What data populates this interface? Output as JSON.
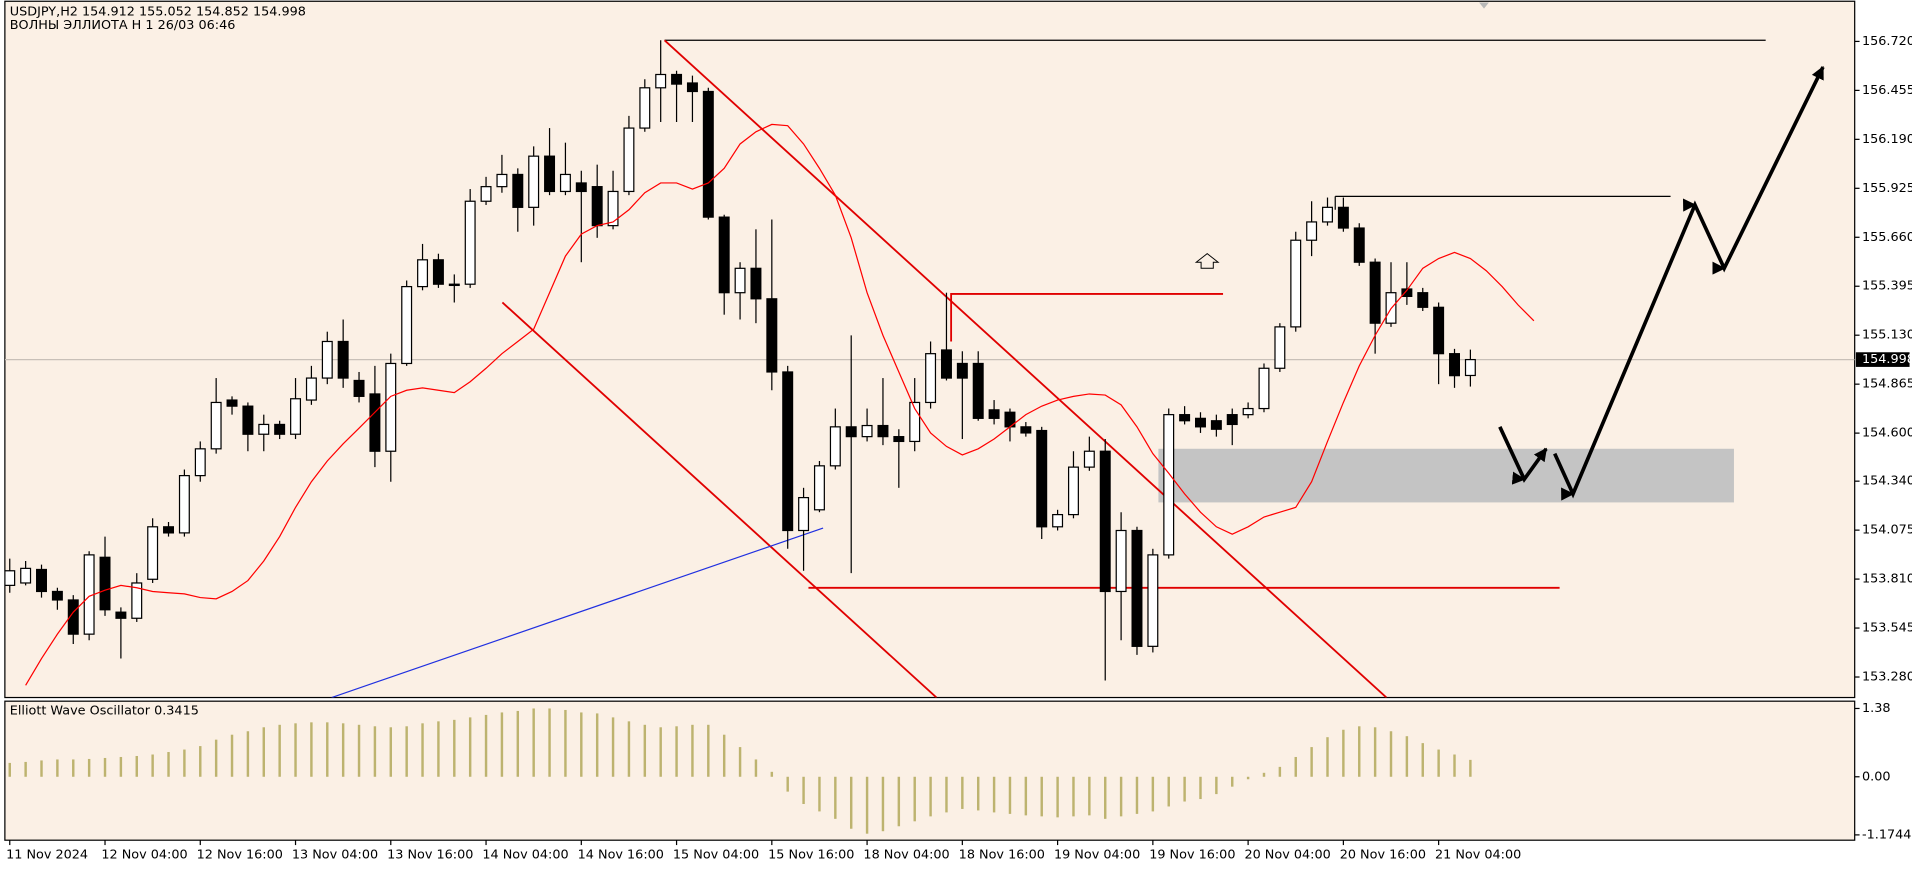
{
  "chart_data": [
    {
      "type": "candlestick",
      "title": "USDJPY,H2  154.912 155.052 154.852 154.998",
      "subtitle": "ВОЛНЫ ЭЛЛИОТА H 1 26/03 06:46",
      "categories": [
        "11 Nov 2024",
        null,
        null,
        null,
        null,
        null,
        "12 Nov 04:00",
        null,
        null,
        null,
        null,
        null,
        "12 Nov 16:00",
        null,
        null,
        null,
        null,
        null,
        "13 Nov 04:00",
        null,
        null,
        null,
        null,
        null,
        "13 Nov 16:00",
        null,
        null,
        null,
        null,
        null,
        "14 Nov 04:00",
        null,
        null,
        null,
        null,
        null,
        "14 Nov 16:00",
        null,
        null,
        null,
        null,
        null,
        "15 Nov 04:00",
        null,
        null,
        null,
        null,
        null,
        "15 Nov 16:00",
        null,
        null,
        null,
        null,
        null,
        "18 Nov 04:00",
        null,
        null,
        null,
        null,
        null,
        "18 Nov 16:00",
        null,
        null,
        null,
        null,
        null,
        "19 Nov 04:00",
        null,
        null,
        null,
        null,
        null,
        "19 Nov 16:00",
        null,
        null,
        null,
        null,
        null,
        "20 Nov 04:00",
        null,
        null,
        null,
        null,
        null,
        "20 Nov 16:00",
        null,
        null,
        null,
        null,
        null,
        "21 Nov 04:00",
        null,
        null,
        null,
        null,
        null,
        null
      ],
      "open": [
        153.776,
        153.789,
        153.862,
        153.743,
        153.697,
        153.512,
        153.928,
        153.631,
        153.598,
        153.809,
        154.093,
        154.06,
        154.37,
        154.515,
        154.779,
        154.746,
        154.594,
        154.647,
        154.594,
        154.779,
        154.898,
        155.096,
        154.885,
        154.812,
        154.502,
        154.977,
        155.393,
        155.538,
        155.406,
        155.406,
        155.855,
        155.934,
        156.0,
        155.822,
        156.099,
        155.908,
        155.954,
        155.934,
        155.723,
        155.908,
        156.251,
        156.469,
        156.541,
        156.495,
        156.449,
        155.769,
        155.36,
        155.492,
        155.327,
        154.931,
        154.073,
        154.185,
        154.423,
        154.634,
        154.581,
        154.641,
        154.581,
        154.555,
        154.766,
        155.05,
        154.977,
        154.977,
        154.726,
        154.713,
        154.634,
        154.614,
        154.093,
        154.159,
        154.416,
        154.502,
        153.743,
        154.073,
        153.446,
        153.941,
        154.7,
        154.68,
        154.667,
        154.7,
        154.7,
        154.733,
        154.951,
        155.175,
        155.644,
        155.743,
        155.822,
        155.71,
        155.525,
        155.195,
        155.38,
        155.36,
        155.281,
        155.03,
        154.912,
        null,
        null,
        null,
        null
      ],
      "high": [
        153.921,
        153.908,
        153.888,
        153.763,
        153.723,
        153.961,
        154.04,
        153.657,
        153.842,
        154.139,
        154.119,
        154.403,
        154.555,
        154.898,
        154.799,
        154.766,
        154.7,
        154.667,
        154.898,
        154.964,
        155.149,
        155.215,
        154.931,
        154.964,
        155.03,
        155.426,
        155.624,
        155.571,
        155.459,
        155.921,
        155.987,
        156.106,
        156.033,
        156.152,
        156.251,
        156.172,
        156.02,
        156.053,
        156.02,
        156.317,
        156.515,
        156.726,
        156.561,
        156.535,
        156.469,
        155.782,
        155.525,
        155.703,
        155.756,
        154.964,
        154.304,
        154.449,
        154.733,
        155.129,
        154.733,
        154.898,
        154.621,
        154.898,
        155.096,
        155.36,
        155.043,
        155.043,
        154.779,
        154.733,
        154.66,
        154.634,
        154.185,
        154.502,
        154.581,
        154.568,
        154.172,
        154.093,
        153.974,
        154.733,
        154.746,
        154.713,
        154.7,
        154.733,
        154.766,
        154.977,
        155.195,
        155.69,
        155.855,
        155.875,
        155.875,
        155.736,
        155.545,
        155.525,
        155.525,
        155.386,
        155.307,
        155.056,
        155.052,
        null,
        null,
        null,
        null
      ],
      "low": [
        153.736,
        153.776,
        153.71,
        153.644,
        153.459,
        153.479,
        153.611,
        153.38,
        153.578,
        153.789,
        154.04,
        154.04,
        154.337,
        154.489,
        154.7,
        154.502,
        154.502,
        154.568,
        154.568,
        154.753,
        154.865,
        154.845,
        154.766,
        154.416,
        154.337,
        154.964,
        155.373,
        155.386,
        155.307,
        155.386,
        155.835,
        155.901,
        155.69,
        155.723,
        155.888,
        155.888,
        155.525,
        155.657,
        155.703,
        155.888,
        156.231,
        156.284,
        156.284,
        156.284,
        155.756,
        155.241,
        155.215,
        155.195,
        154.832,
        153.974,
        153.855,
        154.172,
        154.403,
        153.842,
        154.555,
        154.535,
        154.304,
        154.502,
        154.733,
        154.885,
        154.568,
        154.667,
        154.647,
        154.555,
        154.581,
        154.027,
        154.073,
        154.139,
        154.396,
        153.261,
        153.479,
        153.4,
        153.413,
        153.921,
        154.647,
        154.601,
        154.581,
        154.535,
        154.68,
        154.713,
        154.931,
        155.149,
        155.558,
        155.723,
        155.69,
        155.505,
        155.03,
        155.175,
        155.294,
        155.261,
        154.865,
        154.845,
        154.852,
        null,
        null,
        null,
        null
      ],
      "close": [
        153.855,
        153.868,
        153.743,
        153.697,
        153.512,
        153.941,
        153.644,
        153.598,
        153.789,
        154.093,
        154.06,
        154.37,
        154.515,
        154.766,
        154.746,
        154.594,
        154.647,
        154.594,
        154.786,
        154.898,
        155.096,
        154.898,
        154.799,
        154.502,
        154.977,
        155.393,
        155.538,
        155.406,
        155.4,
        155.855,
        155.934,
        156.0,
        155.822,
        156.099,
        155.908,
        156.0,
        155.908,
        155.723,
        155.908,
        156.251,
        156.469,
        156.541,
        156.489,
        156.449,
        155.769,
        155.36,
        155.492,
        155.327,
        154.931,
        154.073,
        154.251,
        154.423,
        154.634,
        154.581,
        154.641,
        154.581,
        154.555,
        154.766,
        155.03,
        154.898,
        154.898,
        154.68,
        154.68,
        154.634,
        154.601,
        154.093,
        154.159,
        154.416,
        154.502,
        153.743,
        154.073,
        153.446,
        153.941,
        154.7,
        154.667,
        154.634,
        154.621,
        154.647,
        154.733,
        154.951,
        155.175,
        155.644,
        155.743,
        155.822,
        155.71,
        155.525,
        155.195,
        155.36,
        155.34,
        155.281,
        155.03,
        154.911,
        154.998,
        null,
        null,
        null,
        null
      ],
      "up_color": "#ffffff",
      "down_color": "#000000",
      "wick_color": "#000000",
      "ma": {
        "color": "#ff0000",
        "values": [
          null,
          153.235,
          153.38,
          153.512,
          153.631,
          153.717,
          153.75,
          153.776,
          153.763,
          153.743,
          153.736,
          153.73,
          153.71,
          153.703,
          153.743,
          153.802,
          153.908,
          154.04,
          154.198,
          154.337,
          154.449,
          154.542,
          154.627,
          154.713,
          154.799,
          154.832,
          154.845,
          154.832,
          154.819,
          154.878,
          154.951,
          155.03,
          155.096,
          155.162,
          155.36,
          155.558,
          155.677,
          155.723,
          155.743,
          155.809,
          155.901,
          155.954,
          155.954,
          155.921,
          155.954,
          156.033,
          156.165,
          156.231,
          156.271,
          156.264,
          156.165,
          156.033,
          155.888,
          155.657,
          155.36,
          155.129,
          154.931,
          154.733,
          154.601,
          154.528,
          154.482,
          154.515,
          154.568,
          154.634,
          154.7,
          154.746,
          154.779,
          154.799,
          154.812,
          154.806,
          154.753,
          154.634,
          154.489,
          154.383,
          154.271,
          154.172,
          154.093,
          154.053,
          154.093,
          154.146,
          154.172,
          154.198,
          154.337,
          154.555,
          154.766,
          154.964,
          155.129,
          155.274,
          155.373,
          155.492,
          155.545,
          155.578,
          155.545,
          155.479,
          155.393,
          155.294,
          155.208
        ]
      },
      "last_price_line_color": "#c8c0b8",
      "ylim": [
        153.169,
        156.944
      ],
      "yticks": [
        {
          "value": 156.72,
          "label": "156.720"
        },
        156.455,
        {
          "value": 156.19,
          "label": "156.190"
        },
        155.925,
        {
          "value": 155.66,
          "label": "155.660"
        },
        155.395,
        {
          "value": 155.13,
          "label": "155.130"
        },
        154.865,
        {
          "value": 154.6,
          "label": "154.600"
        },
        {
          "value": 154.34,
          "label": "154.340"
        },
        154.075,
        {
          "value": 153.81,
          "label": "153.810"
        },
        153.545,
        {
          "value": 153.28,
          "label": "153.280"
        }
      ],
      "grid": false
    },
    {
      "type": "bar",
      "title": "Elliott Wave Oscillator 0.3415",
      "color": "#bdb36f",
      "values": [
        0.28,
        0.3,
        0.33,
        0.35,
        0.35,
        0.36,
        0.38,
        0.4,
        0.42,
        0.45,
        0.5,
        0.55,
        0.62,
        0.75,
        0.85,
        0.92,
        1.0,
        1.05,
        1.08,
        1.1,
        1.1,
        1.08,
        1.05,
        1.02,
        1.0,
        1.02,
        1.08,
        1.12,
        1.15,
        1.2,
        1.25,
        1.3,
        1.33,
        1.38,
        1.38,
        1.35,
        1.3,
        1.28,
        1.2,
        1.12,
        1.05,
        1.0,
        1.02,
        1.05,
        1.05,
        0.85,
        0.6,
        0.35,
        0.1,
        -0.3,
        -0.55,
        -0.7,
        -0.85,
        -1.05,
        -1.15,
        -1.1,
        -1.0,
        -0.9,
        -0.8,
        -0.72,
        -0.65,
        -0.68,
        -0.72,
        -0.75,
        -0.78,
        -0.8,
        -0.82,
        -0.8,
        -0.78,
        -0.85,
        -0.8,
        -0.75,
        -0.7,
        -0.6,
        -0.5,
        -0.45,
        -0.35,
        -0.2,
        -0.05,
        0.08,
        0.2,
        0.4,
        0.6,
        0.8,
        0.95,
        1.02,
        1.0,
        0.92,
        0.82,
        0.68,
        0.55,
        0.45,
        0.3415,
        null,
        null,
        null,
        null
      ],
      "ylim": [
        -1.306,
        1.552
      ],
      "yticks": [
        1.38,
        {
          "value": 0,
          "label": "0.00"
        },
        -1.1744
      ]
    }
  ]
}
